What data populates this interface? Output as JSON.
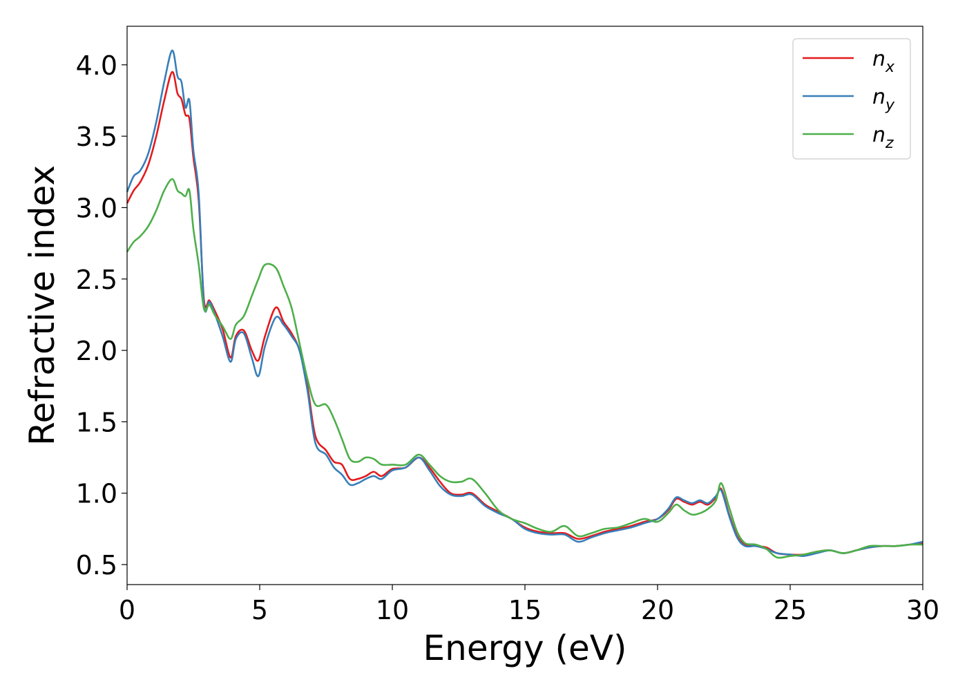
{
  "chart_data": {
    "type": "line",
    "title": "",
    "xlabel": "Energy (eV)",
    "ylabel": "Refractive index",
    "xlim": [
      0,
      30
    ],
    "ylim": [
      0.36,
      4.27
    ],
    "xticks": [
      0,
      5,
      10,
      15,
      20,
      25,
      30
    ],
    "xtick_labels": [
      "0",
      "5",
      "10",
      "15",
      "20",
      "25",
      "30"
    ],
    "yticks": [
      0.5,
      1.0,
      1.5,
      2.0,
      2.5,
      3.0,
      3.5,
      4.0
    ],
    "ytick_labels": [
      "0.5",
      "1.0",
      "1.5",
      "2.0",
      "2.5",
      "3.0",
      "3.5",
      "4.0"
    ],
    "grid": false,
    "legend_position": "top-right",
    "series": [
      {
        "name": "n_x",
        "label_base": "n",
        "label_sub": "x",
        "color": "#e41a1c",
        "x": [
          0,
          0.25,
          0.5,
          0.8,
          1.1,
          1.4,
          1.7,
          1.9,
          2.05,
          2.2,
          2.35,
          2.5,
          2.7,
          2.9,
          3.1,
          3.3,
          3.6,
          3.9,
          4.1,
          4.4,
          4.7,
          4.95,
          5.2,
          5.6,
          5.9,
          6.2,
          6.5,
          6.8,
          7.1,
          7.5,
          7.8,
          8.1,
          8.4,
          8.7,
          9.0,
          9.3,
          9.6,
          10.0,
          10.5,
          11.0,
          11.4,
          11.8,
          12.2,
          12.6,
          13.0,
          13.5,
          14.0,
          14.5,
          15.0,
          15.5,
          16.0,
          16.5,
          17.0,
          17.5,
          18.0,
          18.5,
          19.0,
          19.5,
          20.0,
          20.4,
          20.7,
          21.0,
          21.3,
          21.6,
          21.9,
          22.2,
          22.4,
          22.7,
          23.0,
          23.3,
          23.7,
          24.1,
          24.5,
          25.0,
          25.5,
          26.0,
          26.5,
          27.0,
          27.5,
          28.0,
          28.5,
          29.0,
          29.5,
          30.0
        ],
        "y": [
          3.03,
          3.12,
          3.18,
          3.3,
          3.5,
          3.75,
          3.95,
          3.8,
          3.76,
          3.65,
          3.62,
          3.35,
          3.05,
          2.35,
          2.35,
          2.28,
          2.15,
          1.95,
          2.1,
          2.14,
          2.0,
          1.93,
          2.1,
          2.3,
          2.2,
          2.12,
          2.0,
          1.75,
          1.4,
          1.3,
          1.22,
          1.2,
          1.1,
          1.1,
          1.12,
          1.15,
          1.12,
          1.17,
          1.18,
          1.25,
          1.18,
          1.08,
          1.0,
          0.99,
          1.0,
          0.92,
          0.87,
          0.82,
          0.76,
          0.73,
          0.72,
          0.72,
          0.68,
          0.7,
          0.73,
          0.75,
          0.77,
          0.8,
          0.82,
          0.88,
          0.96,
          0.94,
          0.92,
          0.94,
          0.92,
          0.97,
          1.03,
          0.85,
          0.7,
          0.64,
          0.63,
          0.62,
          0.58,
          0.57,
          0.57,
          0.59,
          0.6,
          0.58,
          0.6,
          0.62,
          0.63,
          0.63,
          0.64,
          0.65
        ]
      },
      {
        "name": "n_y",
        "label_base": "n",
        "label_sub": "y",
        "color": "#377eb8",
        "x": [
          0,
          0.25,
          0.5,
          0.8,
          1.1,
          1.4,
          1.7,
          1.9,
          2.05,
          2.2,
          2.35,
          2.5,
          2.7,
          2.9,
          3.1,
          3.3,
          3.6,
          3.9,
          4.1,
          4.4,
          4.7,
          4.95,
          5.2,
          5.6,
          5.9,
          6.2,
          6.5,
          6.8,
          7.1,
          7.5,
          7.8,
          8.1,
          8.4,
          8.7,
          9.0,
          9.3,
          9.6,
          10.0,
          10.5,
          11.0,
          11.4,
          11.8,
          12.2,
          12.6,
          13.0,
          13.5,
          14.0,
          14.5,
          15.0,
          15.5,
          16.0,
          16.5,
          17.0,
          17.5,
          18.0,
          18.5,
          19.0,
          19.5,
          20.0,
          20.4,
          20.7,
          21.0,
          21.3,
          21.6,
          21.9,
          22.2,
          22.4,
          22.7,
          23.0,
          23.3,
          23.7,
          24.1,
          24.5,
          25.0,
          25.5,
          26.0,
          26.5,
          27.0,
          27.5,
          28.0,
          28.5,
          29.0,
          29.5,
          30.0
        ],
        "y": [
          3.11,
          3.22,
          3.26,
          3.38,
          3.6,
          3.88,
          4.1,
          3.92,
          3.88,
          3.7,
          3.75,
          3.4,
          3.1,
          2.32,
          2.34,
          2.26,
          2.1,
          1.92,
          2.08,
          2.12,
          1.95,
          1.82,
          2.03,
          2.23,
          2.18,
          2.1,
          2.0,
          1.72,
          1.35,
          1.27,
          1.18,
          1.13,
          1.06,
          1.07,
          1.1,
          1.12,
          1.1,
          1.16,
          1.18,
          1.25,
          1.16,
          1.05,
          0.99,
          0.98,
          0.99,
          0.91,
          0.86,
          0.82,
          0.75,
          0.72,
          0.71,
          0.71,
          0.66,
          0.69,
          0.72,
          0.74,
          0.76,
          0.79,
          0.82,
          0.89,
          0.97,
          0.95,
          0.93,
          0.95,
          0.93,
          0.98,
          1.02,
          0.84,
          0.69,
          0.63,
          0.63,
          0.61,
          0.58,
          0.57,
          0.56,
          0.58,
          0.6,
          0.58,
          0.6,
          0.62,
          0.63,
          0.63,
          0.64,
          0.66
        ]
      },
      {
        "name": "n_z",
        "label_base": "n",
        "label_sub": "z",
        "color": "#4daf4a",
        "x": [
          0,
          0.25,
          0.5,
          0.8,
          1.1,
          1.4,
          1.7,
          1.9,
          2.05,
          2.2,
          2.35,
          2.5,
          2.7,
          2.9,
          3.1,
          3.3,
          3.6,
          3.9,
          4.1,
          4.4,
          4.7,
          4.95,
          5.2,
          5.6,
          5.9,
          6.2,
          6.5,
          6.8,
          7.1,
          7.5,
          7.8,
          8.1,
          8.4,
          8.7,
          9.0,
          9.3,
          9.6,
          10.0,
          10.5,
          11.0,
          11.4,
          11.8,
          12.2,
          12.6,
          13.0,
          13.5,
          14.0,
          14.5,
          15.0,
          15.5,
          16.0,
          16.5,
          17.0,
          17.5,
          18.0,
          18.5,
          19.0,
          19.5,
          20.0,
          20.4,
          20.7,
          21.0,
          21.3,
          21.6,
          21.9,
          22.2,
          22.4,
          22.7,
          23.0,
          23.3,
          23.7,
          24.1,
          24.5,
          25.0,
          25.5,
          26.0,
          26.5,
          27.0,
          27.5,
          28.0,
          28.5,
          29.0,
          29.5,
          30.0
        ],
        "y": [
          2.69,
          2.76,
          2.8,
          2.87,
          2.98,
          3.12,
          3.2,
          3.12,
          3.1,
          3.08,
          3.12,
          2.85,
          2.6,
          2.29,
          2.32,
          2.25,
          2.17,
          2.08,
          2.18,
          2.24,
          2.38,
          2.5,
          2.6,
          2.58,
          2.45,
          2.3,
          2.05,
          1.8,
          1.62,
          1.62,
          1.52,
          1.38,
          1.24,
          1.22,
          1.25,
          1.24,
          1.2,
          1.2,
          1.2,
          1.27,
          1.2,
          1.12,
          1.08,
          1.08,
          1.1,
          1.0,
          0.88,
          0.82,
          0.79,
          0.75,
          0.73,
          0.77,
          0.7,
          0.72,
          0.75,
          0.76,
          0.79,
          0.82,
          0.8,
          0.86,
          0.92,
          0.88,
          0.85,
          0.86,
          0.89,
          0.95,
          1.07,
          0.9,
          0.73,
          0.65,
          0.64,
          0.61,
          0.55,
          0.56,
          0.57,
          0.59,
          0.6,
          0.58,
          0.6,
          0.63,
          0.63,
          0.63,
          0.64,
          0.64
        ]
      }
    ]
  }
}
